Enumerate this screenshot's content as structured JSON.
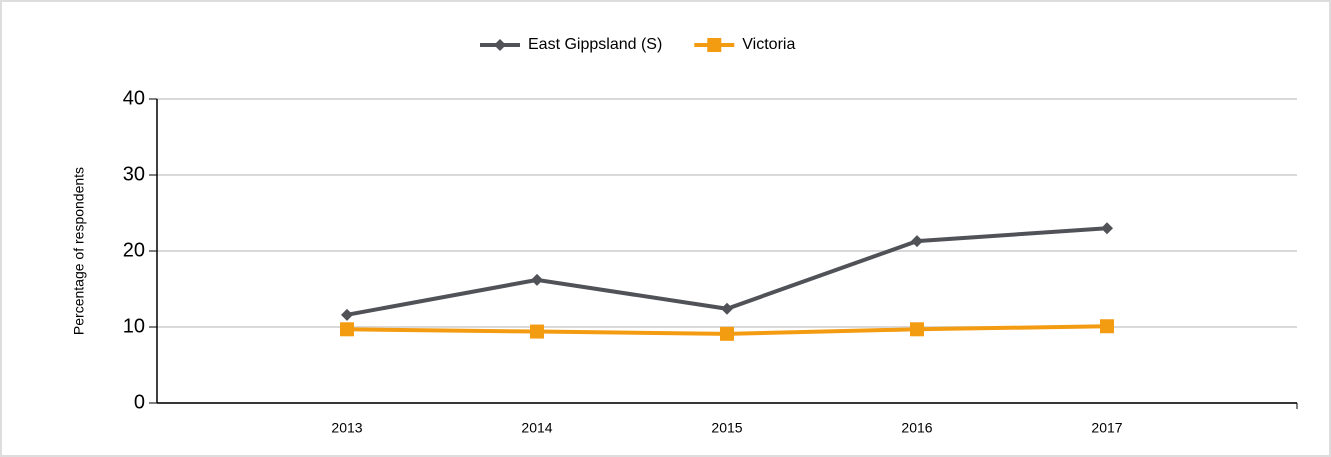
{
  "chart_data": {
    "type": "line",
    "categories": [
      "2013",
      "2014",
      "2015",
      "2016",
      "2017"
    ],
    "series": [
      {
        "name": "East Gippsland (S)",
        "color": "#505258",
        "marker": "diamond",
        "values": [
          11.6,
          16.2,
          12.4,
          21.3,
          23.0
        ]
      },
      {
        "name": "Victoria",
        "color": "#f39c12",
        "marker": "square",
        "values": [
          9.7,
          9.4,
          9.1,
          9.7,
          10.1
        ]
      }
    ],
    "y_label": "Percentage of respondents",
    "ylim": [
      0,
      40
    ],
    "yticks": [
      0,
      10,
      20,
      30,
      40
    ],
    "grid": true,
    "legend": "top"
  }
}
